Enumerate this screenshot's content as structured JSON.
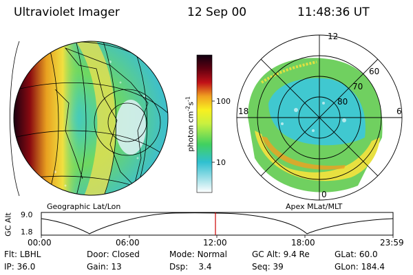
{
  "header": {
    "title": "Ultraviolet Imager",
    "date": "12 Sep 00",
    "time": "11:48:36 UT"
  },
  "colorbar": {
    "unit_label": "photon cm",
    "unit_sup1": "-2",
    "unit_mid": "s",
    "unit_sup2": "-1",
    "ticks": [
      "100",
      "10"
    ]
  },
  "left_image": {
    "caption": "Geographic Lat/Lon"
  },
  "right_image": {
    "caption": "Apex  MLat/MLT",
    "mlt_labels": [
      "12",
      "18",
      "6",
      "0"
    ],
    "lat_labels": [
      "60",
      "70",
      "80"
    ]
  },
  "altitude_plot": {
    "ylabel": "GC Alt",
    "yticks": [
      "9.0",
      "1.8"
    ],
    "xticks": [
      "00:00",
      "06:00",
      "12:00",
      "18:00",
      "23:59"
    ],
    "marker_time": "11:48:36",
    "marker_color": "#cc0000"
  },
  "status": {
    "row1": [
      {
        "key": "Flt:",
        "value": "LBHL"
      },
      {
        "key": "Door:",
        "value": "Closed"
      },
      {
        "key": "Mode:",
        "value": "Normal"
      },
      {
        "key": "GC Alt:",
        "value": "9.4 Re"
      },
      {
        "key": "GLat:",
        "value": "60.0"
      }
    ],
    "row2": [
      {
        "key": "IP:",
        "value": "36.0"
      },
      {
        "key": "Gain:",
        "value": "13"
      },
      {
        "key": "Dsp:",
        "value": "3.4"
      },
      {
        "key": "Seq:",
        "value": "39"
      },
      {
        "key": "GLon:",
        "value": "184.4"
      }
    ]
  }
}
